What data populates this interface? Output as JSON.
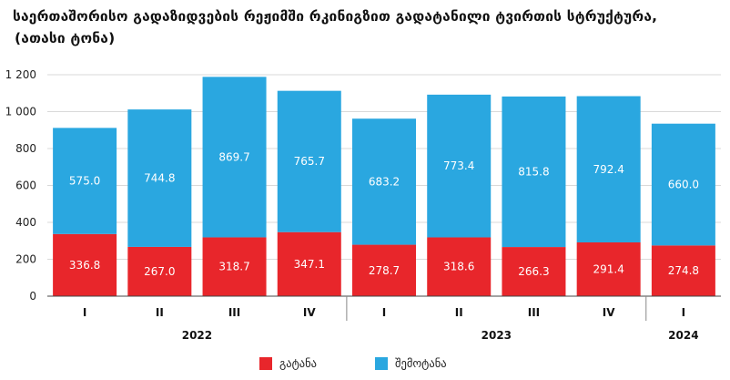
{
  "title": {
    "line1": "საერთაშორისო გადაზიდვების რეჟიმში რკინიგზით გადატანილი ტვირთის სტრუქტურა,",
    "line2": "(ათასი ტონა)"
  },
  "chart_data": {
    "type": "bar",
    "stacked": true,
    "categories": [
      "I",
      "II",
      "III",
      "IV",
      "I",
      "II",
      "III",
      "IV",
      "I"
    ],
    "groups": [
      {
        "label": "2022",
        "span": 4
      },
      {
        "label": "2023",
        "span": 4
      },
      {
        "label": "2024",
        "span": 1
      }
    ],
    "series": [
      {
        "name": "გატანა",
        "color": "#e8262b",
        "values": [
          336.8,
          267.0,
          318.7,
          347.1,
          278.7,
          318.6,
          266.3,
          291.4,
          274.8
        ]
      },
      {
        "name": "შემოტანა",
        "color": "#2aa7e0",
        "values": [
          575.0,
          744.8,
          869.7,
          765.7,
          683.2,
          773.4,
          815.8,
          792.4,
          660.0
        ]
      }
    ],
    "value_labels": {
      "export": [
        "336.8",
        "267.0",
        "318.7",
        "347.1",
        "278.7",
        "318.6",
        "266.3",
        "291.4",
        "274.8"
      ],
      "import": [
        "575.0",
        "744.8",
        "869.7",
        "765.7",
        "683.2",
        "773.4",
        "815.8",
        "792.4",
        "660.0"
      ]
    },
    "yticks": [
      "0",
      "200",
      "400",
      "600",
      "800",
      "1 000",
      "1 200"
    ],
    "ylim": [
      0,
      1200
    ],
    "grid": true,
    "legend_position": "bottom"
  }
}
